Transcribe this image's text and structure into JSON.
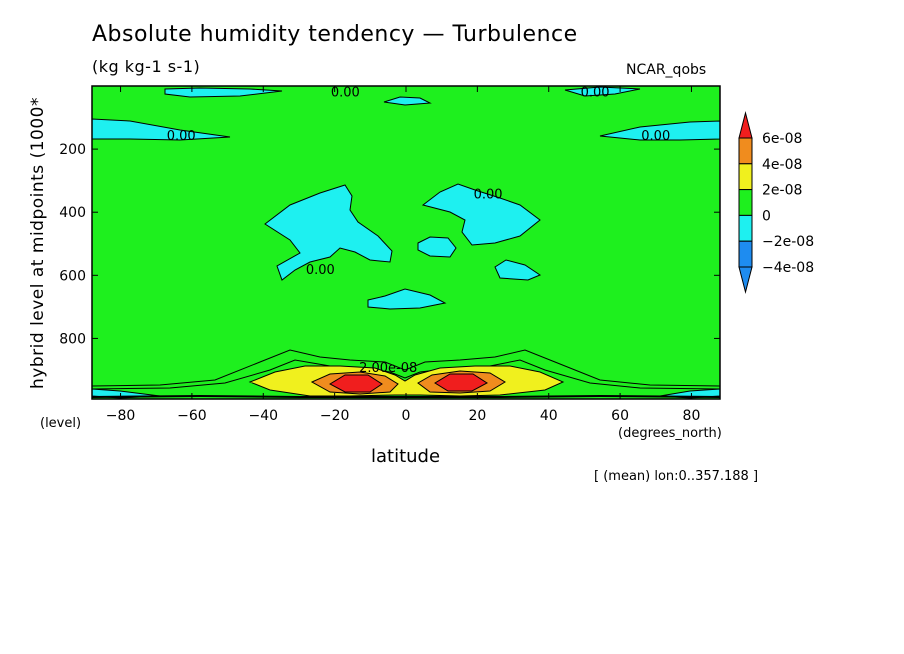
{
  "chart_data": {
    "type": "contour",
    "title": "Absolute humidity tendency — Turbulence",
    "units": "(kg kg-1 s-1)",
    "dataset": "NCAR_qobs",
    "xlabel": "latitude",
    "x_units": "(degrees_north)",
    "ylabel": "hybrid level at midpoints (1000*",
    "y_units": "(level)",
    "footer": "[ (mean) lon:0..357.188 ]",
    "xlim": [
      -88,
      88
    ],
    "ylim": [
      0,
      992
    ],
    "y_inverted": true,
    "x_ticks": [
      -80,
      -60,
      -40,
      -20,
      0,
      20,
      40,
      60,
      80
    ],
    "x_tick_labels": [
      "−80",
      "−60",
      "−40",
      "−20",
      "0",
      "20",
      "40",
      "60",
      "80"
    ],
    "y_ticks": [
      200,
      400,
      600,
      800
    ],
    "y_tick_labels": [
      "200",
      "400",
      "600",
      "800"
    ],
    "contour_labels": [
      {
        "text": "0.00",
        "x": -17,
        "y": 18
      },
      {
        "text": "0.00",
        "x": 53,
        "y": 18
      },
      {
        "text": "0.00",
        "x": -63,
        "y": 155
      },
      {
        "text": "0.00",
        "x": 70,
        "y": 155
      },
      {
        "text": "0.00",
        "x": 23,
        "y": 340
      },
      {
        "text": "0.00",
        "x": -24,
        "y": 580
      },
      {
        "text": "2.00e-08",
        "x": -5,
        "y": 890
      }
    ],
    "colorbar": {
      "levels": [
        "6e-08",
        "4e-08",
        "2e-08",
        "0",
        "−2e-08",
        "−4e-08"
      ],
      "colors": [
        "#f01e1e",
        "#f08c1e",
        "#f0f01e",
        "#1ef01e",
        "#1ef0f0",
        "#1e8cf0"
      ]
    }
  }
}
